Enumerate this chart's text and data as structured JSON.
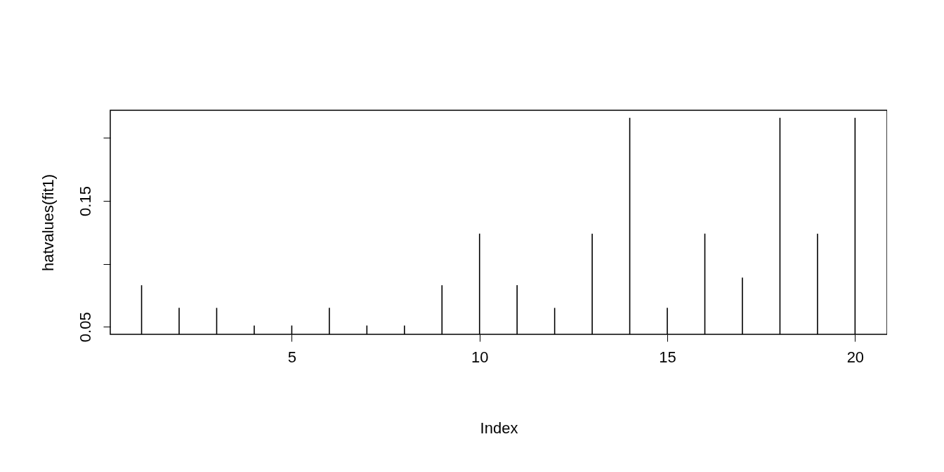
{
  "chart_data": {
    "type": "bar",
    "xlabel": "Index",
    "ylabel": "hatvalues(fit1)",
    "color": "#000000",
    "grid": false,
    "x": [
      1,
      2,
      3,
      4,
      5,
      6,
      7,
      8,
      9,
      10,
      11,
      12,
      13,
      14,
      15,
      16,
      17,
      18,
      19,
      20
    ],
    "values": [
      0.083,
      0.065,
      0.065,
      0.051,
      0.051,
      0.065,
      0.051,
      0.051,
      0.083,
      0.124,
      0.083,
      0.065,
      0.124,
      0.216,
      0.065,
      0.124,
      0.089,
      0.216,
      0.124,
      0.216
    ],
    "xlim": [
      0.26,
      20.76
    ],
    "ylim": [
      0.044,
      0.222
    ],
    "xticks": [
      5,
      10,
      15,
      20
    ],
    "yticks": [
      0.05,
      {
        "value": 0.1,
        "label": null
      },
      0.15,
      {
        "value": 0.2,
        "label": null
      }
    ]
  }
}
